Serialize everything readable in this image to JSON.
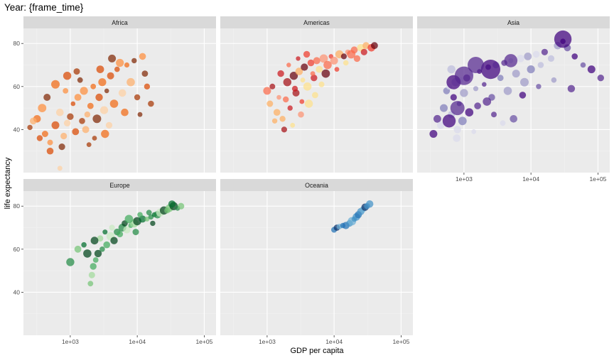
{
  "chart_data": {
    "type": "scatter",
    "title": "Year: {frame_time}",
    "xlabel": "GDP per capita",
    "ylabel": "life expectancy",
    "x_scale": "log10",
    "xlim": [
      200,
      150000
    ],
    "ylim": [
      20,
      87
    ],
    "x_ticks": [
      {
        "value": 1000,
        "label": "1e+03"
      },
      {
        "value": 10000,
        "label": "1e+04"
      },
      {
        "value": 100000,
        "label": "1e+05"
      }
    ],
    "y_ticks": [
      {
        "value": 40,
        "label": "40"
      },
      {
        "value": 60,
        "label": "60"
      },
      {
        "value": 80,
        "label": "80"
      }
    ],
    "grid": true,
    "legend": "none",
    "point_size": "population",
    "point_color": "country",
    "facets": [
      {
        "name": "Africa",
        "palette": [
          "#7f2704",
          "#a63603",
          "#d94801",
          "#f16913",
          "#fd8d3c",
          "#fdae6b",
          "#fdd0a2"
        ],
        "points": [
          [
            250,
            41
          ],
          [
            320,
            45
          ],
          [
            280,
            44
          ],
          [
            420,
            38
          ],
          [
            500,
            34
          ],
          [
            600,
            42
          ],
          [
            700,
            48
          ],
          [
            800,
            37
          ],
          [
            900,
            43
          ],
          [
            1000,
            46
          ],
          [
            1100,
            52
          ],
          [
            1200,
            39
          ],
          [
            1300,
            55
          ],
          [
            1500,
            44
          ],
          [
            1600,
            58
          ],
          [
            1800,
            47
          ],
          [
            2000,
            51
          ],
          [
            2200,
            60
          ],
          [
            2500,
            45
          ],
          [
            2700,
            55
          ],
          [
            3000,
            62
          ],
          [
            3200,
            49
          ],
          [
            3500,
            58
          ],
          [
            4000,
            65
          ],
          [
            4500,
            52
          ],
          [
            5000,
            68
          ],
          [
            6000,
            57
          ],
          [
            7000,
            70
          ],
          [
            8000,
            62
          ],
          [
            9000,
            72
          ],
          [
            10000,
            55
          ],
          [
            12000,
            74
          ],
          [
            14000,
            60
          ],
          [
            16000,
            52
          ],
          [
            500,
            30
          ],
          [
            700,
            22
          ],
          [
            450,
            55
          ],
          [
            380,
            50
          ],
          [
            850,
            58
          ],
          [
            1400,
            63
          ],
          [
            2800,
            68
          ],
          [
            5500,
            71
          ],
          [
            1700,
            40
          ],
          [
            2300,
            36
          ],
          [
            3800,
            42
          ],
          [
            4200,
            73
          ],
          [
            6500,
            48
          ],
          [
            11000,
            47
          ],
          [
            13000,
            66
          ],
          [
            600,
            61
          ],
          [
            900,
            65
          ],
          [
            1250,
            67
          ],
          [
            350,
            36
          ],
          [
            750,
            32
          ],
          [
            1900,
            33
          ],
          [
            3300,
            38
          ]
        ]
      },
      {
        "name": "Americas",
        "palette": [
          "#67000d",
          "#a50f15",
          "#cb181d",
          "#ef3b2c",
          "#fb6a4a",
          "#fc9272",
          "#fdae61",
          "#fee08b"
        ],
        "points": [
          [
            1000,
            58
          ],
          [
            1100,
            52
          ],
          [
            1200,
            60
          ],
          [
            1400,
            48
          ],
          [
            1500,
            55
          ],
          [
            1700,
            45
          ],
          [
            2000,
            62
          ],
          [
            2200,
            50
          ],
          [
            2500,
            65
          ],
          [
            2700,
            57
          ],
          [
            3000,
            67
          ],
          [
            3300,
            53
          ],
          [
            3600,
            69
          ],
          [
            4000,
            60
          ],
          [
            4500,
            71
          ],
          [
            5000,
            64
          ],
          [
            5500,
            72
          ],
          [
            6000,
            68
          ],
          [
            7000,
            73
          ],
          [
            8000,
            70
          ],
          [
            9000,
            74
          ],
          [
            10000,
            72
          ],
          [
            12000,
            75
          ],
          [
            14000,
            74
          ],
          [
            16000,
            76
          ],
          [
            18000,
            75
          ],
          [
            20000,
            77
          ],
          [
            25000,
            78
          ],
          [
            30000,
            79
          ],
          [
            36000,
            78
          ],
          [
            40000,
            79
          ],
          [
            1800,
            40
          ],
          [
            1300,
            44
          ],
          [
            2400,
            42
          ],
          [
            3200,
            47
          ],
          [
            4200,
            52
          ],
          [
            5200,
            56
          ],
          [
            6500,
            61
          ],
          [
            2100,
            70
          ],
          [
            2900,
            73
          ],
          [
            3900,
            75
          ],
          [
            1600,
            66
          ],
          [
            1900,
            54
          ],
          [
            2600,
            59
          ],
          [
            3400,
            63
          ],
          [
            4800,
            66
          ],
          [
            7500,
            66
          ],
          [
            11000,
            68
          ],
          [
            15000,
            71
          ],
          [
            22000,
            73
          ],
          [
            28000,
            76
          ]
        ]
      },
      {
        "name": "Asia",
        "palette": [
          "#3f007d",
          "#54278f",
          "#6a51a3",
          "#807dba",
          "#9e9ac8",
          "#bcbddc",
          "#dadaeb"
        ],
        "points": [
          [
            350,
            38
          ],
          [
            400,
            45
          ],
          [
            450,
            42
          ],
          [
            500,
            50
          ],
          [
            550,
            58
          ],
          [
            600,
            60
          ],
          [
            650,
            47
          ],
          [
            700,
            55
          ],
          [
            750,
            62
          ],
          [
            800,
            40
          ],
          [
            850,
            52
          ],
          [
            900,
            63
          ],
          [
            1000,
            57
          ],
          [
            1100,
            64
          ],
          [
            1200,
            48
          ],
          [
            1300,
            66
          ],
          [
            1500,
            59
          ],
          [
            1700,
            67
          ],
          [
            2000,
            61
          ],
          [
            2300,
            69
          ],
          [
            2600,
            55
          ],
          [
            3000,
            70
          ],
          [
            3500,
            64
          ],
          [
            4000,
            71
          ],
          [
            4500,
            58
          ],
          [
            5000,
            72
          ],
          [
            6000,
            66
          ],
          [
            7000,
            73
          ],
          [
            8000,
            62
          ],
          [
            9000,
            74
          ],
          [
            10000,
            68
          ],
          [
            12000,
            75
          ],
          [
            14000,
            70
          ],
          [
            16000,
            76
          ],
          [
            20000,
            73
          ],
          [
            25000,
            79
          ],
          [
            30000,
            81
          ],
          [
            35000,
            78
          ],
          [
            45000,
            74
          ],
          [
            60000,
            70
          ],
          [
            80000,
            68
          ],
          [
            110000,
            64
          ],
          [
            5500,
            45
          ],
          [
            3800,
            43
          ],
          [
            2800,
            47
          ],
          [
            1600,
            51
          ],
          [
            950,
            44
          ],
          [
            650,
            68
          ],
          [
            780,
            36
          ],
          [
            1400,
            39
          ],
          [
            2200,
            53
          ],
          [
            7500,
            56
          ],
          [
            13000,
            60
          ],
          [
            40000,
            59
          ],
          [
            22000,
            63
          ]
        ],
        "bubbles": [
          [
            700,
            62
          ],
          [
            1000,
            65
          ],
          [
            600,
            44
          ],
          [
            800,
            50
          ],
          [
            2500,
            68
          ],
          [
            5000,
            72
          ],
          [
            30000,
            82
          ],
          [
            1500,
            70
          ]
        ]
      },
      {
        "name": "Europe",
        "palette": [
          "#00441b",
          "#006d2c",
          "#238b45",
          "#41ab5d",
          "#74c476",
          "#a1d99b",
          "#c7e9c0"
        ],
        "points": [
          [
            1000,
            54
          ],
          [
            1300,
            60
          ],
          [
            1600,
            62
          ],
          [
            2000,
            44
          ],
          [
            2100,
            48
          ],
          [
            2200,
            52
          ],
          [
            2400,
            55
          ],
          [
            2600,
            58
          ],
          [
            3000,
            60
          ],
          [
            3500,
            62
          ],
          [
            4000,
            66
          ],
          [
            4500,
            64
          ],
          [
            5000,
            68
          ],
          [
            5500,
            67
          ],
          [
            6000,
            70
          ],
          [
            7000,
            69
          ],
          [
            8000,
            71
          ],
          [
            9000,
            72
          ],
          [
            10000,
            73
          ],
          [
            12000,
            74
          ],
          [
            14000,
            74
          ],
          [
            16000,
            75
          ],
          [
            18000,
            76
          ],
          [
            20000,
            76
          ],
          [
            22000,
            77
          ],
          [
            25000,
            78
          ],
          [
            28000,
            78
          ],
          [
            30000,
            79
          ],
          [
            35000,
            80
          ],
          [
            40000,
            79
          ],
          [
            45000,
            80
          ],
          [
            2800,
            65
          ],
          [
            3300,
            68
          ],
          [
            4200,
            70
          ],
          [
            6500,
            72
          ],
          [
            11000,
            76
          ],
          [
            1800,
            58
          ],
          [
            2300,
            64
          ],
          [
            7500,
            74
          ],
          [
            15000,
            77
          ],
          [
            33000,
            81
          ],
          [
            9500,
            68
          ],
          [
            17000,
            72
          ]
        ]
      },
      {
        "name": "Oceania",
        "palette": [
          "#08306b",
          "#2171b5",
          "#4292c6",
          "#6baed6"
        ],
        "points": [
          [
            10000,
            69
          ],
          [
            11000,
            70
          ],
          [
            12000,
            70.5
          ],
          [
            13500,
            71
          ],
          [
            15000,
            71
          ],
          [
            17000,
            72
          ],
          [
            18500,
            73
          ],
          [
            20000,
            74
          ],
          [
            21500,
            75
          ],
          [
            23000,
            76
          ],
          [
            25000,
            77.5
          ],
          [
            27000,
            78.5
          ],
          [
            29000,
            79.5
          ],
          [
            31000,
            80
          ],
          [
            34000,
            81
          ]
        ]
      }
    ]
  }
}
